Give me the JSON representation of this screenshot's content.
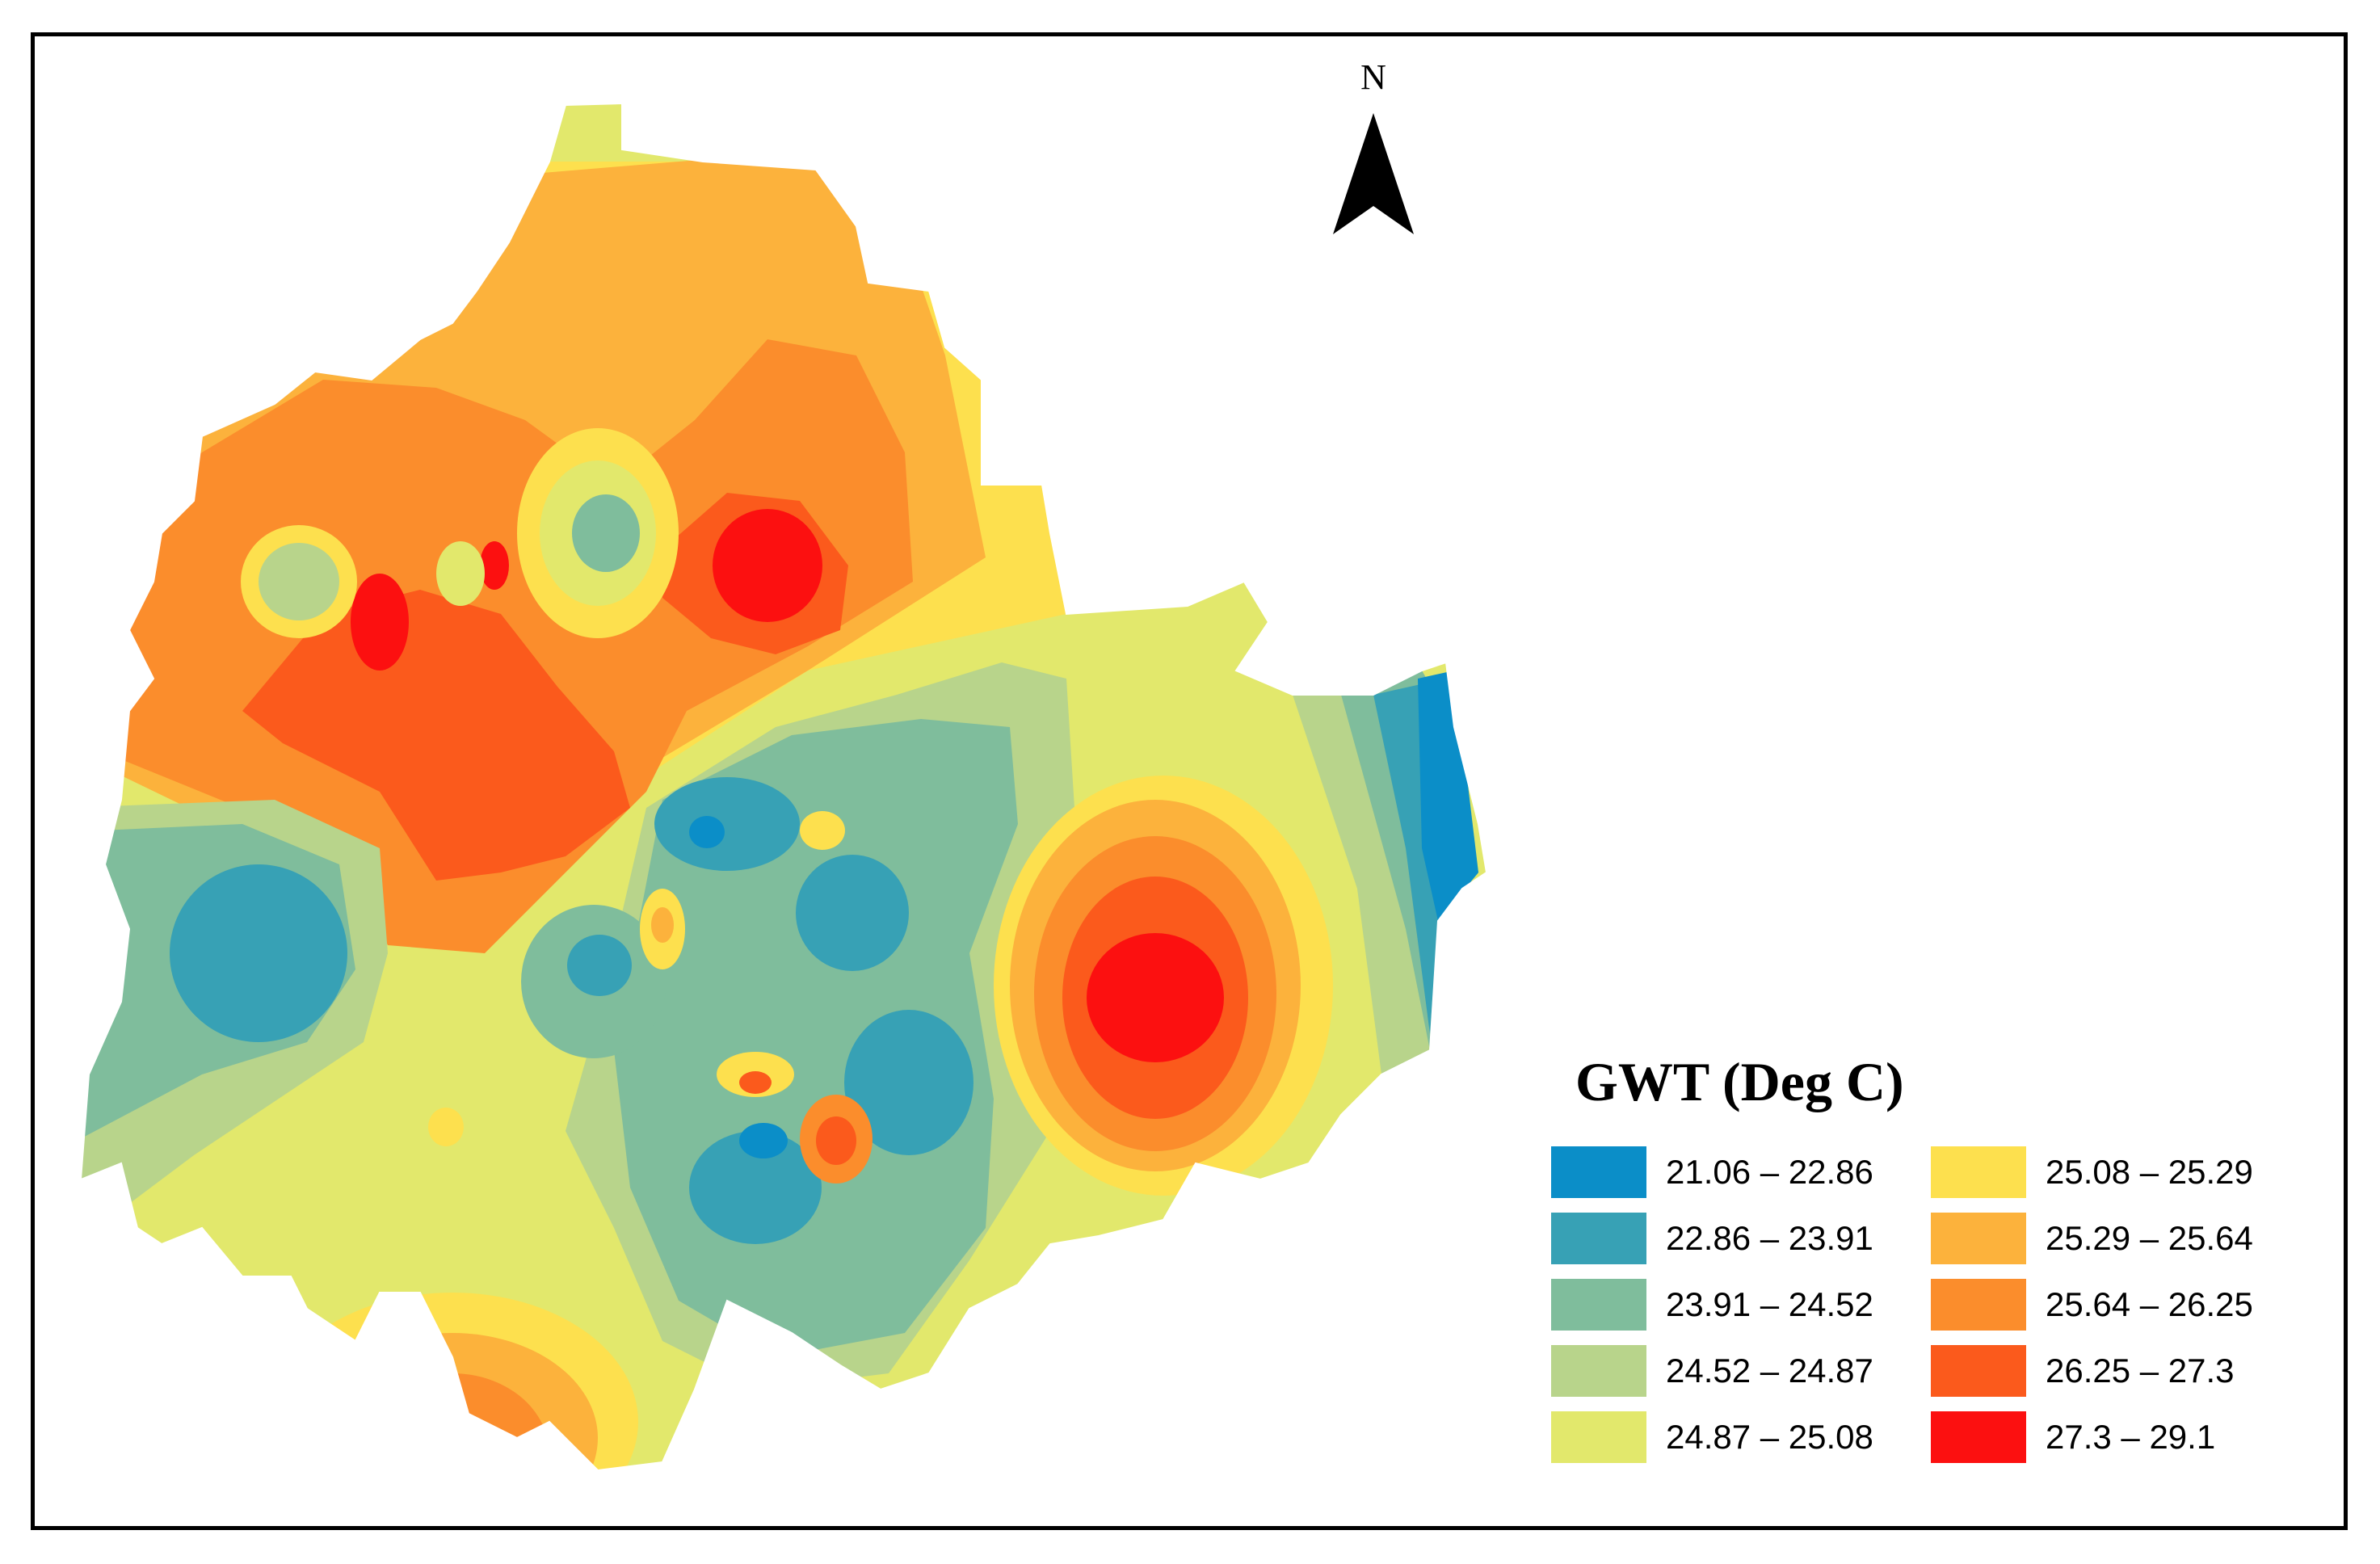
{
  "map": {
    "north_label": "N",
    "legend_title": "GWT (Deg C)",
    "classes": [
      {
        "label": "21.06 – 22.86",
        "color": "#0b8ec8"
      },
      {
        "label": "22.86 – 23.91",
        "color": "#37a1b5"
      },
      {
        "label": "23.91 – 24.52",
        "color": "#7fbd9c"
      },
      {
        "label": "24.52 – 24.87",
        "color": "#b8d48b"
      },
      {
        "label": "24.87 – 25.08",
        "color": "#e2e86c"
      },
      {
        "label": "25.08 – 25.29",
        "color": "#fde04e"
      },
      {
        "label": "25.29 – 25.64",
        "color": "#fcb23c"
      },
      {
        "label": "25.64 – 26.25",
        "color": "#fb8d2c"
      },
      {
        "label": "26.25 – 27.3",
        "color": "#fb5a1c"
      },
      {
        "label": "27.3 – 29.1",
        "color": "#fc1010"
      }
    ]
  }
}
